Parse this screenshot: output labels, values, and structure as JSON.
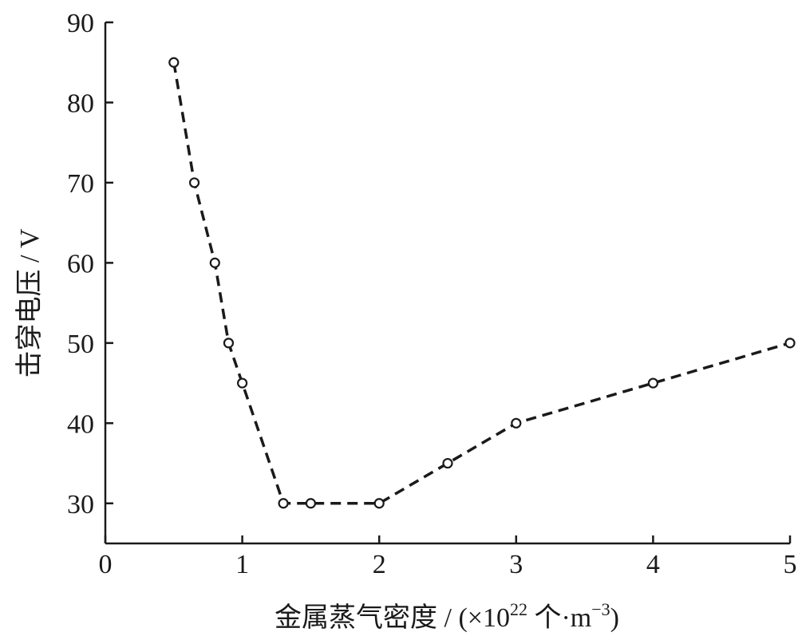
{
  "chart_data": {
    "type": "line",
    "title": "",
    "xlabel_prefix": "金属蒸气密度 / (×10",
    "xlabel_exp": "22",
    "xlabel_unit": " 个·m",
    "xlabel_unit_exp": "−3",
    "xlabel_close": ")",
    "ylabel": "击穿电压 / V",
    "xlim": [
      0,
      5
    ],
    "ylim": [
      25,
      90
    ],
    "xticks": [
      "0",
      "1",
      "2",
      "3",
      "4",
      "5"
    ],
    "yticks": [
      "30",
      "40",
      "50",
      "60",
      "70",
      "80",
      "90"
    ],
    "line_style": "dashed",
    "marker": "open-circle",
    "color": "#1a1a1a",
    "grid": false,
    "series": [
      {
        "x": [
          0.5,
          0.65,
          0.8,
          0.9,
          1.0,
          1.3,
          1.5,
          2.0,
          2.5,
          3.0,
          4.0,
          5.0
        ],
        "y": [
          85,
          70,
          60,
          50,
          45,
          30,
          30,
          30,
          35,
          40,
          45,
          50
        ]
      }
    ]
  }
}
